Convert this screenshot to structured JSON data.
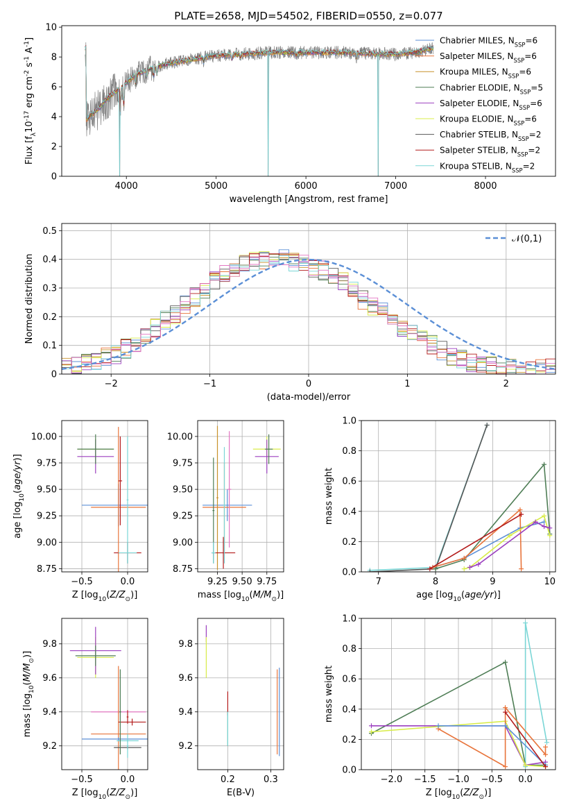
{
  "chart_data": [
    {
      "id": "spectrum",
      "type": "line",
      "title": "PLATE=2658, MJD=54502, FIBERID=0550, z=0.077",
      "xlabel": "wavelength [Angstrom, rest frame]",
      "ylabel": "Flux [f$_\\lambda$10$^{-17}$ erg cm$^{-2}$ s$^{-1}$ A$^{-1}$]",
      "xlim": [
        3280,
        8780
      ],
      "ylim": [
        0,
        10.1
      ],
      "xticks": [
        4000,
        5000,
        6000,
        7000,
        8000
      ],
      "yticks": [
        0,
        2,
        4,
        6,
        8,
        10
      ],
      "grid": false,
      "legend_position": "right",
      "legend": [
        {
          "label": "Chabrier MILES, N$_{SSP}$=6",
          "color": "#5b8fd6"
        },
        {
          "label": "Salpeter MILES, N$_{SSP}$=6",
          "color": "#e8743b"
        },
        {
          "label": "Kroupa MILES, N$_{SSP}$=6",
          "color": "#c8912a"
        },
        {
          "label": "Chabrier ELODIE, N$_{SSP}$=5",
          "color": "#4e7d55"
        },
        {
          "label": "Salpeter ELODIE, N$_{SSP}$=6",
          "color": "#9b3fbf"
        },
        {
          "label": "Kroupa ELODIE, N$_{SSP}$=6",
          "color": "#d8ec48"
        },
        {
          "label": "Chabrier STELIB, N$_{SSP}$=2",
          "color": "#555555"
        },
        {
          "label": "Salpeter STELIB, N$_{SSP}$=2",
          "color": "#b31b1b"
        },
        {
          "label": "Kroupa STELIB, N$_{SSP}$=2",
          "color": "#7ad6d6"
        }
      ],
      "data_color": "#808080",
      "continuum": [
        [
          3550,
          3.8
        ],
        [
          3700,
          4.6
        ],
        [
          3800,
          5.3
        ],
        [
          3950,
          6.0
        ],
        [
          4100,
          6.8
        ],
        [
          4300,
          7.3
        ],
        [
          4500,
          7.6
        ],
        [
          4800,
          7.9
        ],
        [
          5000,
          8.1
        ],
        [
          5300,
          8.2
        ],
        [
          5600,
          8.3
        ],
        [
          6000,
          8.3
        ],
        [
          6400,
          8.3
        ],
        [
          6800,
          8.2
        ],
        [
          7000,
          8.2
        ],
        [
          7200,
          8.3
        ],
        [
          7420,
          8.6
        ]
      ],
      "absorption_lines": [
        [
          3934,
          4.2
        ],
        [
          3969,
          4.5
        ],
        [
          4102,
          6.2
        ],
        [
          4227,
          6.8
        ],
        [
          4304,
          6.5
        ],
        [
          4340,
          6.8
        ],
        [
          4861,
          7.7
        ],
        [
          5175,
          7.7
        ],
        [
          5270,
          7.9
        ],
        [
          5895,
          8.0
        ],
        [
          6563,
          7.9
        ]
      ],
      "spikes_to_zero": [
        3925,
        5578,
        6805,
        7430
      ],
      "data_xrange": [
        3540,
        7420
      ],
      "model_xrange": [
        3540,
        7420
      ]
    },
    {
      "id": "residuals",
      "type": "line",
      "xlabel": "(data-model)/error",
      "ylabel": "Normed distribution",
      "xlim": [
        -2.5,
        2.5
      ],
      "ylim": [
        0,
        0.525
      ],
      "xticks": [
        -2,
        -1,
        0,
        1,
        2
      ],
      "yticks": [
        0.0,
        0.1,
        0.2,
        0.3,
        0.4,
        0.5
      ],
      "grid": true,
      "legend_position": "top-right",
      "legend": [
        {
          "label": "$\\mathcal{N}(0,1)$",
          "color": "#5b8fd6",
          "style": "dashed"
        }
      ],
      "bin_width": 0.1,
      "bin_range": [
        -2.5,
        2.5
      ],
      "seed_values": [
        0.02,
        0.03,
        0.05,
        0.04,
        0.06,
        0.07,
        0.09,
        0.11,
        0.14,
        0.16,
        0.19,
        0.21,
        0.24,
        0.27,
        0.3,
        0.33,
        0.35,
        0.37,
        0.38,
        0.39,
        0.4,
        0.41,
        0.4,
        0.39,
        0.38,
        0.37,
        0.36,
        0.34,
        0.32,
        0.29,
        0.26,
        0.24,
        0.22,
        0.19,
        0.16,
        0.14,
        0.12,
        0.1,
        0.08,
        0.06,
        0.05,
        0.04,
        0.03,
        0.03,
        0.02,
        0.02,
        0.02,
        0.01,
        0.02,
        0.02
      ],
      "series_colors": [
        "#5b8fd6",
        "#e8743b",
        "#c8912a",
        "#4e7d55",
        "#9b3fbf",
        "#d8ec48",
        "#555555",
        "#b31b1b",
        "#7ad6d6",
        "#e377c2"
      ]
    },
    {
      "id": "z_age",
      "type": "scatter",
      "xlabel": "Z [log$_{10}$($Z/Z_\\odot$)]",
      "ylabel": "age  [log$_{10}$($age/yr$)]",
      "xlim": [
        -0.72,
        0.22
      ],
      "ylim": [
        8.72,
        10.15
      ],
      "xticks": [
        -0.5,
        0.0
      ],
      "xticklabels": [
        "−0.5",
        "0.0"
      ],
      "yticks": [
        8.75,
        9.0,
        9.25,
        9.5,
        9.75,
        10.0
      ],
      "yticklabels": [
        "8.75",
        "9.00",
        "9.25",
        "9.50",
        "9.75",
        "10.00"
      ],
      "grid": true,
      "points": [
        {
          "x": -0.35,
          "y": 9.88,
          "xerr": 0.2,
          "yerr": 0.1,
          "color": "#d8ec48"
        },
        {
          "x": -0.35,
          "y": 9.81,
          "xerr": 0.2,
          "yerr": 0.16,
          "color": "#9b3fbf"
        },
        {
          "x": -0.35,
          "y": 9.88,
          "xerr": 0.2,
          "yerr": 0.14,
          "color": "#4e7d55"
        },
        {
          "x": -0.1,
          "y": 9.35,
          "xerr": 0.4,
          "yerr": 0.2,
          "color": "#5b8fd6"
        },
        {
          "x": -0.1,
          "y": 9.33,
          "xerr": 0.3,
          "yerr": 0.76,
          "color": "#e8743b"
        },
        {
          "x": -0.08,
          "y": 9.58,
          "xerr": 0.02,
          "yerr": 0.42,
          "color": "#b31b1b"
        },
        {
          "x": 0.0,
          "y": 8.9,
          "xerr": 0.15,
          "yerr": 0.1,
          "color": "#b31b1b"
        },
        {
          "x": 0.0,
          "y": 8.9,
          "xerr": 0.1,
          "yerr": 0.1,
          "color": "#7ad6d6"
        },
        {
          "x": 0.0,
          "y": 9.4,
          "xerr": 0.01,
          "yerr": 0.6,
          "color": "#7ad6d6"
        }
      ]
    },
    {
      "id": "mass_age",
      "type": "scatter",
      "xlabel": "mass [log$_{10}$($M/M_\\odot$)]",
      "ylabel": "",
      "xlim": [
        9.05,
        9.92
      ],
      "ylim": [
        8.72,
        10.15
      ],
      "xticks": [
        9.25,
        9.5,
        9.75
      ],
      "xticklabels": [
        "9.25",
        "9.50",
        "9.75"
      ],
      "yticks": [
        8.75,
        9.0,
        9.25,
        9.5,
        9.75,
        10.0
      ],
      "yticklabels": [
        "8.75",
        "9.00",
        "9.25",
        "9.50",
        "9.75",
        "10.00"
      ],
      "grid": true,
      "points": [
        {
          "x": 9.75,
          "y": 9.88,
          "xerr": 0.14,
          "yerr": 0.12,
          "color": "#d8ec48"
        },
        {
          "x": 9.75,
          "y": 9.81,
          "xerr": 0.12,
          "yerr": 0.16,
          "color": "#9b3fbf"
        },
        {
          "x": 9.77,
          "y": 9.88,
          "xerr": 0.04,
          "yerr": 0.14,
          "color": "#4e7d55"
        },
        {
          "x": 9.35,
          "y": 9.35,
          "xerr": 0.25,
          "yerr": 0.15,
          "color": "#5b8fd6"
        },
        {
          "x": 9.32,
          "y": 9.33,
          "xerr": 0.22,
          "yerr": 0.42,
          "color": "#e8743b"
        },
        {
          "x": 9.37,
          "y": 9.5,
          "xerr": 0.02,
          "yerr": 0.55,
          "color": "#e377c2"
        },
        {
          "x": 9.25,
          "y": 9.42,
          "xerr": 0.01,
          "yerr": 0.68,
          "color": "#c8912a"
        },
        {
          "x": 9.21,
          "y": 9.3,
          "xerr": 0.01,
          "yerr": 0.5,
          "color": "#4e7d55"
        },
        {
          "x": 9.31,
          "y": 8.9,
          "xerr": 0.12,
          "yerr": 0.15,
          "color": "#b31b1b"
        },
        {
          "x": 9.21,
          "y": 8.9,
          "xerr": 0.02,
          "yerr": 0.1,
          "color": "#7ad6d6"
        },
        {
          "x": 9.32,
          "y": 9.35,
          "xerr": 0.01,
          "yerr": 0.55,
          "color": "#7ad6d6"
        }
      ]
    },
    {
      "id": "age_weight",
      "type": "line",
      "xlabel": "age  [log$_{10}$($age/yr$)]",
      "ylabel": "mass weight",
      "xlim": [
        6.7,
        10.1
      ],
      "ylim": [
        0,
        1.0
      ],
      "xticks": [
        7,
        8,
        9,
        10
      ],
      "xticklabels": [
        "7",
        "8",
        "9",
        "10"
      ],
      "yticks": [
        0.0,
        0.2,
        0.4,
        0.6,
        0.8,
        1.0
      ],
      "yticklabels": [
        "0.0",
        "0.2",
        "0.4",
        "0.6",
        "0.8",
        "1.0"
      ],
      "grid": true,
      "series": [
        {
          "color": "#7ad6d6",
          "x": [
            6.85,
            8.0,
            8.9
          ],
          "y": [
            0.01,
            0.03,
            0.97
          ]
        },
        {
          "color": "#555555",
          "x": [
            6.85,
            8.0,
            8.9
          ],
          "y": [
            0.0,
            0.02,
            0.97
          ]
        },
        {
          "color": "#4e7d55",
          "x": [
            8.0,
            8.5,
            9.9,
            10.0
          ],
          "y": [
            0.02,
            0.08,
            0.71,
            0.25
          ]
        },
        {
          "color": "#5b8fd6",
          "x": [
            7.95,
            8.5,
            9.48,
            9.9
          ],
          "y": [
            0.03,
            0.09,
            0.29,
            0.33
          ]
        },
        {
          "color": "#e8743b",
          "x": [
            7.95,
            8.5,
            9.48,
            9.5
          ],
          "y": [
            0.03,
            0.09,
            0.41,
            0.02
          ]
        },
        {
          "color": "#d8ec48",
          "x": [
            8.5,
            8.6,
            9.3,
            9.9,
            10.0
          ],
          "y": [
            0.02,
            0.03,
            0.24,
            0.37,
            0.24
          ]
        },
        {
          "color": "#9b3fbf",
          "x": [
            8.6,
            8.75,
            9.75,
            9.9,
            10.0
          ],
          "y": [
            0.03,
            0.05,
            0.33,
            0.3,
            0.29
          ]
        },
        {
          "color": "#b31b1b",
          "x": [
            7.9,
            9.5
          ],
          "y": [
            0.02,
            0.38
          ]
        }
      ]
    },
    {
      "id": "z_mass",
      "type": "scatter",
      "xlabel": "Z [log$_{10}$($Z/Z_\\odot$)]",
      "ylabel": "mass [log$_{10}$($M/M_\\odot$)]",
      "xlim": [
        -0.72,
        0.22
      ],
      "ylim": [
        9.06,
        9.95
      ],
      "xticks": [
        -0.5,
        0.0
      ],
      "xticklabels": [
        "−0.5",
        "0.0"
      ],
      "yticks": [
        9.2,
        9.4,
        9.6,
        9.8
      ],
      "yticklabels": [
        "9.2",
        "9.4",
        "9.6",
        "9.8"
      ],
      "grid": true,
      "points": [
        {
          "x": -0.35,
          "y": 9.72,
          "xerr": 0.2,
          "yerr": 0.12,
          "color": "#d8ec48"
        },
        {
          "x": -0.35,
          "y": 9.76,
          "xerr": 0.28,
          "yerr": 0.14,
          "color": "#9b3fbf"
        },
        {
          "x": -0.35,
          "y": 9.73,
          "xerr": 0.22,
          "yerr": 0.06,
          "color": "#4e7d55"
        },
        {
          "x": -0.1,
          "y": 9.4,
          "xerr": 0.3,
          "yerr": 0.01,
          "color": "#e377c2"
        },
        {
          "x": -0.1,
          "y": 9.27,
          "xerr": 0.3,
          "yerr": 0.4,
          "color": "#e8743b"
        },
        {
          "x": -0.1,
          "y": 9.24,
          "xerr": 0.4,
          "yerr": 0.01,
          "color": "#5b8fd6"
        },
        {
          "x": 0.05,
          "y": 9.34,
          "xerr": 0.15,
          "yerr": 0.02,
          "color": "#b31b1b"
        },
        {
          "x": 0.0,
          "y": 9.19,
          "xerr": 0.15,
          "yerr": 0.01,
          "color": "#555555"
        },
        {
          "x": 0.0,
          "y": 9.23,
          "xerr": 0.12,
          "yerr": 0.01,
          "color": "#7ad6d6"
        },
        {
          "x": 0.0,
          "y": 9.37,
          "xerr": 0.01,
          "yerr": 0.04,
          "color": "#b31b1b"
        },
        {
          "x": -0.08,
          "y": 9.4,
          "xerr": 0.01,
          "yerr": 0.25,
          "color": "#4e7d55"
        },
        {
          "x": 0.0,
          "y": 9.2,
          "xerr": 0.01,
          "yerr": 0.07,
          "color": "#7ad6d6"
        }
      ]
    },
    {
      "id": "ebv_mass",
      "type": "scatter",
      "xlabel": "E(B-V)",
      "ylabel": "",
      "xlim": [
        0.13,
        0.33
      ],
      "ylim": [
        9.06,
        9.95
      ],
      "xticks": [
        0.2,
        0.3
      ],
      "xticklabels": [
        "0.2",
        "0.3"
      ],
      "yticks": [
        9.2,
        9.4,
        9.6,
        9.8
      ],
      "yticklabels": [
        "9.2",
        "9.4",
        "9.6",
        "9.8"
      ],
      "grid": true,
      "points": [
        {
          "x": 0.15,
          "y": 9.86,
          "xerr": 0.0,
          "yerr": 0.05,
          "color": "#9b3fbf"
        },
        {
          "x": 0.15,
          "y": 9.72,
          "xerr": 0.0,
          "yerr": 0.12,
          "color": "#d8ec48"
        },
        {
          "x": 0.2,
          "y": 9.45,
          "xerr": 0.0,
          "yerr": 0.07,
          "color": "#b31b1b"
        },
        {
          "x": 0.2,
          "y": 9.3,
          "xerr": 0.0,
          "yerr": 0.1,
          "color": "#4e7d55"
        },
        {
          "x": 0.2,
          "y": 9.3,
          "xerr": 0.0,
          "yerr": 0.1,
          "color": "#7ad6d6"
        },
        {
          "x": 0.315,
          "y": 9.4,
          "xerr": 0.0,
          "yerr": 0.25,
          "color": "#e8743b"
        },
        {
          "x": 0.32,
          "y": 9.4,
          "xerr": 0.0,
          "yerr": 0.26,
          "color": "#5b8fd6"
        }
      ]
    },
    {
      "id": "z_weight",
      "type": "line",
      "xlabel": "Z [log$_{10}$($Z/Z_\\odot$)]",
      "ylabel": "mass weight",
      "xlim": [
        -2.45,
        0.45
      ],
      "ylim": [
        0,
        1.0
      ],
      "xticks": [
        -2.0,
        -1.5,
        -1.0,
        -0.5,
        0.0
      ],
      "xticklabels": [
        "−2.0",
        "−1.5",
        "−1.0",
        "−0.5",
        "0.0"
      ],
      "yticks": [
        0.0,
        0.2,
        0.4,
        0.6,
        0.8,
        1.0
      ],
      "yticklabels": [
        "0.0",
        "0.2",
        "0.4",
        "0.6",
        "0.8",
        "1.0"
      ],
      "grid": true,
      "series": [
        {
          "color": "#7ad6d6",
          "x": [
            0.0,
            0.0,
            0.32
          ],
          "y": [
            0.02,
            0.97,
            0.18
          ]
        },
        {
          "color": "#4e7d55",
          "x": [
            -2.3,
            -0.3,
            0.0,
            0.3
          ],
          "y": [
            0.24,
            0.71,
            0.03,
            0.03
          ]
        },
        {
          "color": "#9b3fbf",
          "x": [
            -2.3,
            -0.3,
            0.0,
            0.3
          ],
          "y": [
            0.29,
            0.29,
            0.03,
            0.05
          ]
        },
        {
          "color": "#d8ec48",
          "x": [
            -2.3,
            -0.3,
            0.0,
            0.3
          ],
          "y": [
            0.25,
            0.32,
            0.03,
            0.02
          ]
        },
        {
          "color": "#e8743b",
          "x": [
            -1.3,
            -0.3,
            -0.3,
            0.3,
            0.3
          ],
          "y": [
            0.27,
            0.02,
            0.41,
            0.1,
            0.15
          ]
        },
        {
          "color": "#5b8fd6",
          "x": [
            -1.3,
            -0.3,
            0.3
          ],
          "y": [
            0.29,
            0.29,
            0.03
          ]
        },
        {
          "color": "#b31b1b",
          "x": [
            -0.3,
            0.3
          ],
          "y": [
            0.38,
            0.02
          ]
        }
      ]
    }
  ]
}
